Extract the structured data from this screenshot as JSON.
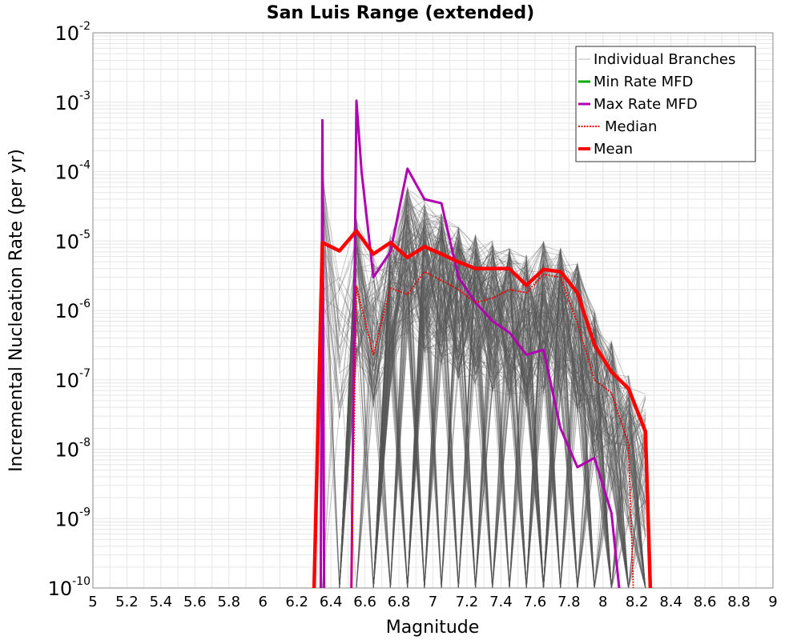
{
  "chart_data": {
    "type": "line",
    "title": "San Luis Range (extended)",
    "xlabel": "Magnitude",
    "ylabel": "Incremental Nucleation Rate (per yr)",
    "xlim": [
      5,
      9
    ],
    "ylim": [
      1e-10,
      0.01
    ],
    "y_scale": "log",
    "grid": true,
    "legend_position": "top-right",
    "x_ticks": [
      "5",
      "5.2",
      "5.4",
      "5.6",
      "5.8",
      "6",
      "6.2",
      "6.4",
      "6.6",
      "6.8",
      "7",
      "7.2",
      "7.4",
      "7.6",
      "7.8",
      "8",
      "8.2",
      "8.4",
      "8.6",
      "8.8",
      "9"
    ],
    "y_ticks": [
      {
        "base": "10",
        "exp": "-10"
      },
      {
        "base": "10",
        "exp": "-9"
      },
      {
        "base": "10",
        "exp": "-8"
      },
      {
        "base": "10",
        "exp": "-7"
      },
      {
        "base": "10",
        "exp": "-6"
      },
      {
        "base": "10",
        "exp": "-5"
      },
      {
        "base": "10",
        "exp": "-4"
      },
      {
        "base": "10",
        "exp": "-3"
      },
      {
        "base": "10",
        "exp": "-2"
      }
    ],
    "colors": {
      "individual": "#555555",
      "min": "#00aa00",
      "max": "#b000b0",
      "median": "#ee0000",
      "mean": "#ff0000",
      "grid": "#e6e6e6"
    },
    "series": [
      {
        "name": "Mean",
        "x": [
          6.3,
          6.35,
          6.45,
          6.55,
          6.65,
          6.75,
          6.85,
          6.95,
          7.05,
          7.15,
          7.25,
          7.35,
          7.45,
          7.55,
          7.65,
          7.75,
          7.85,
          7.95,
          8.05,
          8.15,
          8.25,
          8.28
        ],
        "y": [
          1e-10,
          9.5e-06,
          7.2e-06,
          1.4e-05,
          6.5e-06,
          9.5e-06,
          5.8e-06,
          8.3e-06,
          6.5e-06,
          5e-06,
          4e-06,
          4e-06,
          4e-06,
          2.3e-06,
          3.9e-06,
          3.6e-06,
          1.8e-06,
          3.2e-07,
          1.3e-07,
          7.5e-08,
          1.8e-08,
          1e-10
        ]
      },
      {
        "name": "Median",
        "x": [
          6.52,
          6.55,
          6.65,
          6.75,
          6.85,
          6.95,
          7.05,
          7.15,
          7.25,
          7.35,
          7.45,
          7.55,
          7.65,
          7.75,
          7.85,
          7.95,
          8.05,
          8.15,
          8.18
        ],
        "y": [
          1e-10,
          2.2e-06,
          2.3e-07,
          2.1e-06,
          1.7e-06,
          3.6e-06,
          2.7e-06,
          2e-06,
          1.3e-06,
          1.5e-06,
          2e-06,
          1.8e-06,
          3.3e-06,
          3e-06,
          6.5e-07,
          1e-07,
          6.5e-08,
          1.2e-08,
          1e-10
        ]
      },
      {
        "name": "Max Rate MFD",
        "x": [
          6.34,
          6.35,
          6.36,
          6.4,
          6.52,
          6.55,
          6.58,
          6.65,
          6.75,
          6.85,
          6.95,
          7.05,
          7.15,
          7.25,
          7.35,
          7.45,
          7.55,
          7.65,
          7.75,
          7.85,
          7.95,
          8.05,
          8.1
        ],
        "y": [
          1e-10,
          0.00055,
          1e-10,
          1e-10,
          1e-10,
          0.00105,
          0.0001,
          3e-06,
          7e-06,
          0.00011,
          4e-05,
          3.5e-05,
          3e-06,
          1.3e-06,
          7e-07,
          4.8e-07,
          2.3e-07,
          2.7e-07,
          2e-08,
          5.5e-09,
          7.5e-09,
          1.2e-09,
          1e-10
        ]
      },
      {
        "name": "Min Rate MFD",
        "x": [],
        "y": []
      }
    ],
    "legend": [
      {
        "name": "Individual Branches",
        "style": "thin"
      },
      {
        "name": "Min Rate MFD",
        "style": "min"
      },
      {
        "name": "Max Rate MFD",
        "style": "max"
      },
      {
        "name": "Median",
        "style": "median"
      },
      {
        "name": "Mean",
        "style": "mean"
      }
    ]
  }
}
